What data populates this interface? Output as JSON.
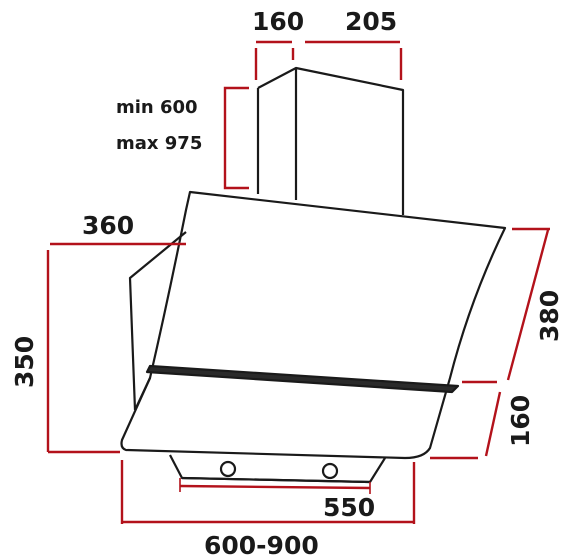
{
  "dimensions": {
    "top_chimney_depth": "160",
    "top_chimney_width": "205",
    "chimney_height_min": "min 600",
    "chimney_height_max": "max 975",
    "glass_depth": "360",
    "hood_height": "350",
    "glass_length": "380",
    "lower_segment": "160",
    "bottom_width": "550",
    "overall_width": "600-900"
  },
  "colors": {
    "dimension_line": "#b3121b",
    "outline": "#1a1a1a"
  }
}
